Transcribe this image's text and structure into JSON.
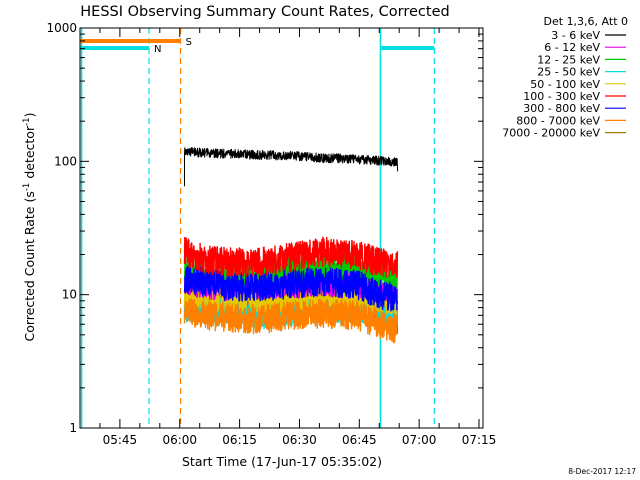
{
  "chart_data": {
    "type": "line",
    "title": "HESSI Observing Summary Count Rates, Corrected",
    "xlabel": "Start Time (17-Jun-17 05:35:02)",
    "ylabel_main": "Corrected Count Rate (s",
    "ylabel_sup": "-1",
    "ylabel_tail": " detector",
    "ylabel_sup2": "-1",
    "ylabel_close": ")",
    "footer": "8-Dec-2017 12:17",
    "y_scale": "log",
    "ylim": [
      1,
      1000
    ],
    "xlim_min": [
      35,
      136
    ],
    "x_ticks": [
      {
        "m": 45,
        "label": "05:45"
      },
      {
        "m": 60,
        "label": "06:00"
      },
      {
        "m": 75,
        "label": "06:15"
      },
      {
        "m": 90,
        "label": "06:30"
      },
      {
        "m": 105,
        "label": "06:45"
      },
      {
        "m": 120,
        "label": "07:00"
      },
      {
        "m": 135,
        "label": "07:15"
      }
    ],
    "y_ticks": [
      {
        "v": 1,
        "label": "1"
      },
      {
        "v": 10,
        "label": "10"
      },
      {
        "v": 100,
        "label": "100"
      },
      {
        "v": 1000,
        "label": "1000"
      }
    ],
    "legend": {
      "header": "Det 1,3,6, Att 0",
      "placement": "right"
    },
    "series": [
      {
        "name": "3 - 6 keV",
        "color": "#000000",
        "x": [
          61.2,
          62,
          66,
          72,
          80,
          88,
          96,
          104,
          110,
          114.6
        ],
        "y": [
          120,
          118,
          116,
          114,
          112,
          110,
          106,
          104,
          101,
          99
        ]
      },
      {
        "name": "6 - 12 keV",
        "color": "#e600e6",
        "x": [
          61.2,
          66,
          72,
          76,
          80,
          88,
          96,
          104,
          110,
          114.6
        ],
        "y": [
          13,
          12,
          11.5,
          13,
          12,
          12,
          12.5,
          12,
          11.5,
          11
        ]
      },
      {
        "name": "12 - 25 keV",
        "color": "#00cc00",
        "x": [
          61.2,
          66,
          72,
          80,
          88,
          96,
          104,
          110,
          114.6
        ],
        "y": [
          16,
          15,
          14,
          14,
          15,
          16,
          15.5,
          14.5,
          14
        ]
      },
      {
        "name": "25 - 50 keV",
        "color": "#00e0e0",
        "x": [
          61.2,
          66,
          72,
          80,
          88,
          96,
          104,
          110,
          114.6
        ],
        "y": [
          8,
          7.5,
          7.5,
          7,
          7.5,
          8,
          7.5,
          7,
          7
        ]
      },
      {
        "name": "50 - 100 keV",
        "color": "#e6c800",
        "x": [
          61.2,
          66,
          72,
          80,
          88,
          96,
          104,
          110,
          114.6
        ],
        "y": [
          10,
          9.5,
          9.5,
          9,
          9.5,
          10,
          9.5,
          9,
          9
        ]
      },
      {
        "name": "100 - 300 keV",
        "color": "#ff0000",
        "x": [
          61.2,
          66,
          72,
          80,
          88,
          96,
          104,
          110,
          114.6
        ],
        "y": [
          21,
          18.5,
          17.5,
          17.5,
          19,
          21,
          20,
          17.5,
          17
        ]
      },
      {
        "name": "300 - 800 keV",
        "color": "#0000ff",
        "x": [
          61.2,
          66,
          72,
          80,
          88,
          96,
          104,
          110,
          114.6
        ],
        "y": [
          13,
          12.5,
          11.5,
          11.5,
          12,
          12.5,
          12,
          10,
          9.5
        ]
      },
      {
        "name": "800 - 7000 keV",
        "color": "#ff8000",
        "x": [
          61.2,
          66,
          72,
          80,
          88,
          96,
          104,
          110,
          114.6
        ],
        "y": [
          7.5,
          7,
          6.8,
          6.5,
          7,
          7.2,
          7,
          6,
          5.5
        ]
      },
      {
        "name": "7000 - 20000 keV",
        "color": "#a08000",
        "x": [
          61.2,
          66,
          72,
          80,
          88,
          96,
          104,
          110,
          114.6
        ],
        "y": [
          8.5,
          8,
          7.8,
          7.5,
          8,
          8.2,
          8,
          7,
          6.5
        ]
      }
    ],
    "flags": [
      {
        "name": "N",
        "color": "#00e0e0",
        "segments": [
          [
            35,
            52.3
          ],
          [
            110.5,
            123.8
          ]
        ],
        "dashed_at": [
          52.3,
          123.8
        ],
        "solid_at": [
          35.4,
          110.3
        ]
      },
      {
        "name": "S",
        "color": "#ff8000",
        "segments": [
          [
            35,
            60.2
          ]
        ],
        "dashed_at": [
          60.2
        ],
        "solid_at": []
      }
    ]
  }
}
